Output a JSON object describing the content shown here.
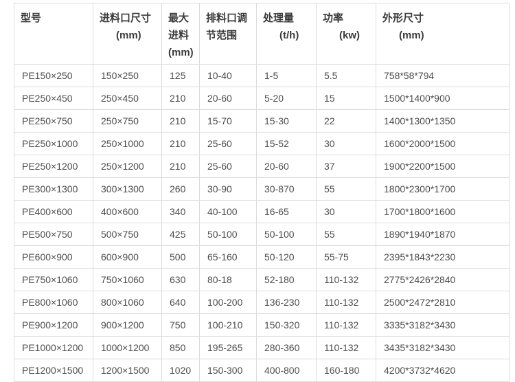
{
  "chart_data": {
    "type": "table",
    "columns": [
      {
        "id": "model",
        "label": "型号",
        "unit": ""
      },
      {
        "id": "feed_opening",
        "label": "进料口尺寸",
        "unit": "(mm)"
      },
      {
        "id": "max_feed",
        "label": "最大进料",
        "unit": "(mm)"
      },
      {
        "id": "discharge_range",
        "label": "排料口调节范围",
        "unit": ""
      },
      {
        "id": "capacity",
        "label": "处理量",
        "unit": "(t/h)"
      },
      {
        "id": "power",
        "label": "功率",
        "unit": "(kw)"
      },
      {
        "id": "dimensions",
        "label": "外形尺寸",
        "unit": "(mm)"
      }
    ],
    "rows": [
      [
        "PE150×250",
        "150×250",
        "125",
        "10-40",
        "1-5",
        "5.5",
        "758*58*794"
      ],
      [
        "PE250×450",
        "250×450",
        "210",
        "20-60",
        "5-20",
        "15",
        "1500*1400*900"
      ],
      [
        "PE250×750",
        "250×750",
        "210",
        "15-70",
        "15-30",
        "22",
        "1400*1300*1350"
      ],
      [
        "PE250×1000",
        "250×1000",
        "210",
        "25-60",
        "15-52",
        "30",
        "1600*2000*1500"
      ],
      [
        "PE250×1200",
        "250×1200",
        "210",
        "25-60",
        "20-60",
        "37",
        "1900*2200*1500"
      ],
      [
        "PE300×1300",
        "300×1300",
        "260",
        "30-90",
        "30-870",
        "55",
        "1800*2300*1700"
      ],
      [
        "PE400×600",
        "400×600",
        "340",
        "40-100",
        "16-65",
        "30",
        "1700*1800*1600"
      ],
      [
        "PE500×750",
        "500×750",
        "425",
        "50-100",
        "50-100",
        "55",
        "1890*1940*1870"
      ],
      [
        "PE600×900",
        "600×900",
        "500",
        "65-160",
        "50-120",
        "55-75",
        "2395*1843*2230"
      ],
      [
        "PE750×1060",
        "750×1060",
        "630",
        "80-18",
        "52-180",
        "110-132",
        "2775*2426*2840"
      ],
      [
        "PE800×1060",
        "800×1060",
        "640",
        "100-200",
        "136-230",
        "110-132",
        "2500*2472*2810"
      ],
      [
        "PE900×1200",
        "900×1200",
        "750",
        "100-210",
        "150-320",
        "110-132",
        "3335*3182*3430"
      ],
      [
        "PE1000×1200",
        "1000×1200",
        "850",
        "195-265",
        "280-360",
        "110-132",
        "3435*3182*3430"
      ],
      [
        "PE1200×1500",
        "1200×1500",
        "1020",
        "150-300",
        "400-800",
        "160-180",
        "4200*3732*4620"
      ]
    ]
  },
  "colors": {
    "border": "#dcdcdc",
    "header_text": "#3b3b3b",
    "cell_text": "#4c4c4c",
    "background": "#ffffff"
  }
}
